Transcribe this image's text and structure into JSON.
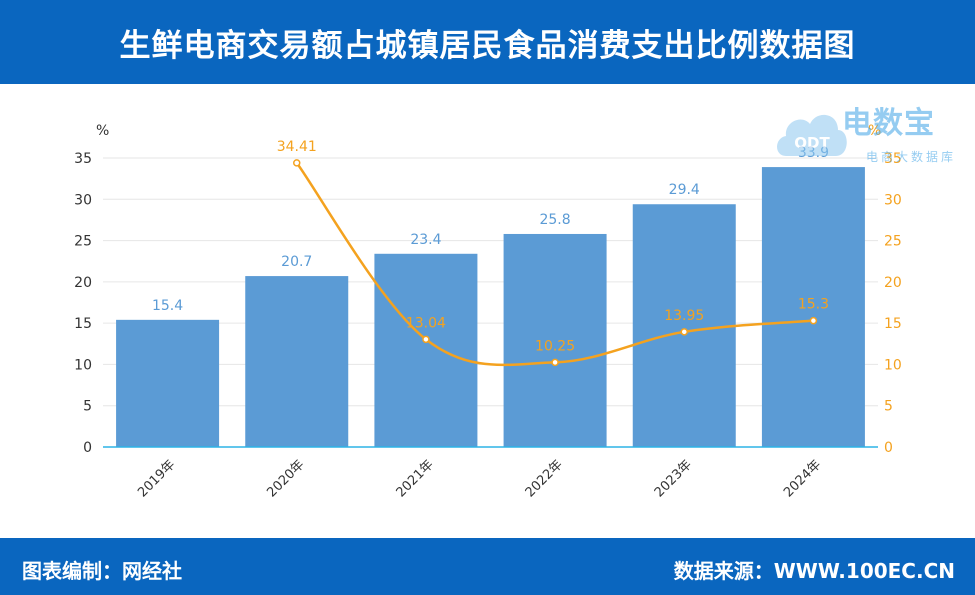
{
  "header": {
    "title": "生鲜电商交易额占城镇居民食品消费支出比例数据图"
  },
  "footer": {
    "left": "图表编制：网经社",
    "right": "数据来源：WWW.100EC.CN"
  },
  "watermark": {
    "main": "电数宝",
    "sub": "电商大数据库",
    "logo_text": "ODT"
  },
  "colors": {
    "header": "#0a66bf",
    "bar": "#5b9bd5",
    "line": "#f4a21f",
    "bar_label": "#5b9bd5",
    "line_label": "#f4a21f"
  },
  "chart_data": {
    "type": "bar",
    "categories": [
      "2019年",
      "2020年",
      "2021年",
      "2022年",
      "2023年",
      "2024年"
    ],
    "series": [
      {
        "type": "bar",
        "axis": "left",
        "values": [
          15.4,
          20.7,
          23.4,
          25.8,
          29.4,
          33.9
        ]
      },
      {
        "type": "line",
        "axis": "right",
        "values": [
          null,
          34.41,
          13.04,
          10.25,
          13.95,
          15.3
        ]
      }
    ],
    "y_left": {
      "unit": "%",
      "range": [
        0,
        35
      ],
      "ticks": [
        0,
        5,
        10,
        15,
        20,
        25,
        30,
        35
      ]
    },
    "y_right": {
      "unit": "%",
      "range": [
        0,
        35
      ],
      "ticks": [
        0,
        5,
        10,
        15,
        20,
        25,
        30,
        35
      ]
    },
    "grid": true
  }
}
